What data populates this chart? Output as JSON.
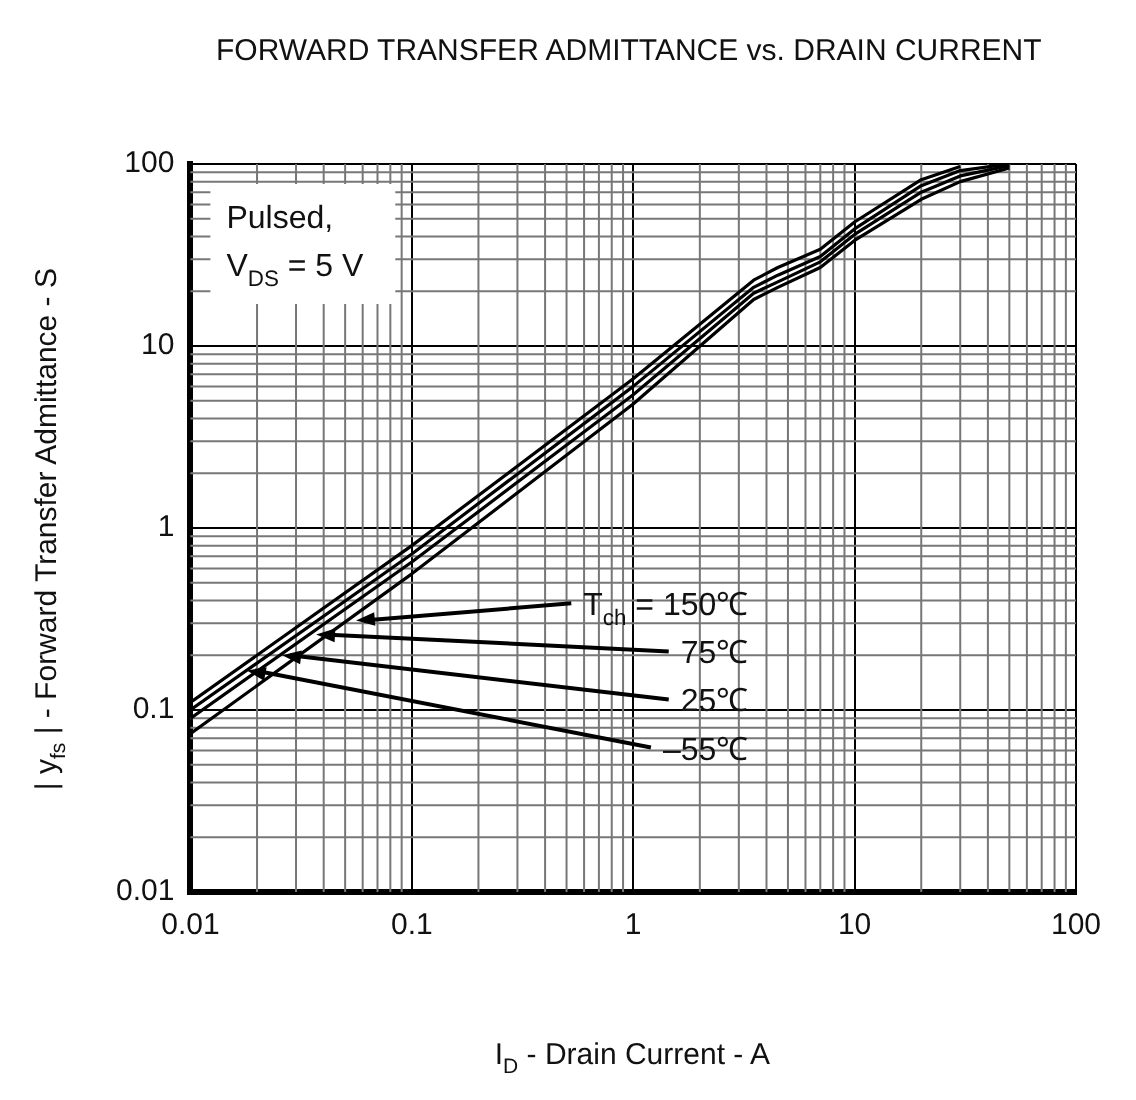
{
  "chart_data": {
    "type": "line",
    "title": "FORWARD TRANSFER ADMITTANCE vs. DRAIN CURRENT",
    "xlabel": "I$_{D}$ - Drain Current - A",
    "ylabel": "| y$_{fs}$ | - Forward Transfer Admittance - S",
    "log": "xy",
    "xlim": [
      0.01,
      100
    ],
    "ylim": [
      0.01,
      100
    ],
    "xticks": [
      0.01,
      0.1,
      1,
      10,
      100
    ],
    "yticks": [
      0.01,
      0.1,
      1,
      10,
      100
    ],
    "grid": true,
    "legend": false,
    "marker": "none",
    "line_style": "solid",
    "x": [
      0.01,
      0.1,
      1,
      3.5,
      4.5,
      7,
      10,
      20,
      30,
      50
    ],
    "series": [
      {
        "color": "#000000",
        "values": [
          0.11,
          0.8,
          6.6,
          23,
          27,
          34,
          48,
          82,
          97,
          null
        ]
      },
      {
        "color": "#000000",
        "values": [
          0.1,
          0.72,
          6,
          21,
          24.5,
          31,
          44,
          76,
          92,
          100
        ]
      },
      {
        "color": "#000000",
        "values": [
          0.09,
          0.65,
          5.4,
          19.5,
          22.5,
          29,
          41,
          70,
          86,
          98
        ]
      },
      {
        "color": "#000000",
        "values": [
          0.074,
          0.56,
          4.8,
          18,
          21,
          27,
          38,
          64,
          80,
          95
        ]
      }
    ],
    "annotations": [
      "Pulsed,\nV$_{DS}$ = 5 V",
      {
        "text": "T$_{ch}$ = 150℃",
        "x": 0.056,
        "y": 0.31
      },
      {
        "text": "75℃",
        "x": 0.037,
        "y": 0.26
      },
      {
        "text": "25℃",
        "x": 0.026,
        "y": 0.2
      },
      {
        "text": "–55℃",
        "x": 0.018,
        "y": 0.165
      }
    ]
  }
}
